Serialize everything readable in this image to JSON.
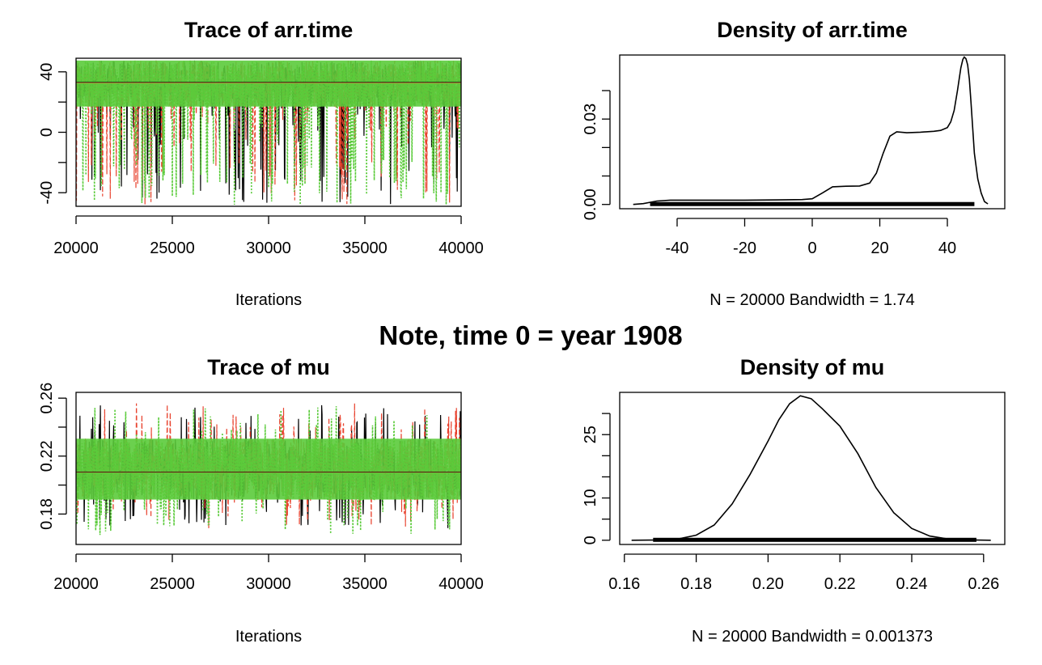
{
  "figure_title": "Note, time 0 = year 1908",
  "colors": {
    "chain1": "#000000",
    "chain2": "#e8432f",
    "chain3": "#5bcb3b",
    "axis": "#000000"
  },
  "chart_data": [
    {
      "id": "trace_arr",
      "type": "line",
      "title": "Trace of arr.time",
      "xlabel": "Iterations",
      "ylabel": "",
      "xlim": [
        20000,
        40000
      ],
      "ylim": [
        -49,
        49
      ],
      "xticks": [
        20000,
        25000,
        30000,
        35000,
        40000
      ],
      "yticks": [
        -40,
        0,
        40
      ],
      "y_minor_ticks": [
        -20,
        20
      ],
      "series": [
        {
          "color": "#000000",
          "mean": 33,
          "band_low": 17,
          "band_high": 47.5,
          "spikes_low": -48
        },
        {
          "color": "#e8432f",
          "mean": 33,
          "band_low": 17,
          "band_high": 47.5,
          "spikes_low": -48
        },
        {
          "color": "#5bcb3b",
          "mean": 33,
          "band_low": 17,
          "band_high": 47.5,
          "spikes_low": -48
        }
      ]
    },
    {
      "id": "density_arr",
      "type": "line",
      "title": "Density of arr.time",
      "xlabel": "N = 20000   Bandwidth = 1.74",
      "ylabel": "",
      "xlim": [
        -57,
        57
      ],
      "ylim": [
        -0.0015,
        0.0525
      ],
      "xticks": [
        -40,
        -20,
        0,
        20,
        40
      ],
      "yticks": [
        0.0,
        0.03
      ],
      "ytick_labels": [
        "0.00",
        "0.03"
      ],
      "y_minor_ticks": [
        0.01,
        0.02,
        0.04
      ],
      "x": [
        -53,
        -50,
        -46,
        -42,
        -38,
        -30,
        -20,
        -10,
        -3,
        0,
        3,
        6,
        10,
        14,
        17,
        19,
        21,
        23,
        25,
        28,
        32,
        36,
        38,
        40,
        41,
        42,
        43,
        44,
        44.6,
        45,
        45.5,
        46,
        46.5,
        47,
        47.5,
        48,
        49,
        50,
        51,
        52
      ],
      "y": [
        0,
        0.0003,
        0.0012,
        0.0015,
        0.0015,
        0.0015,
        0.0015,
        0.0016,
        0.0017,
        0.002,
        0.004,
        0.0062,
        0.0064,
        0.0065,
        0.0075,
        0.011,
        0.018,
        0.024,
        0.0255,
        0.0252,
        0.0254,
        0.0257,
        0.026,
        0.027,
        0.029,
        0.033,
        0.04,
        0.048,
        0.051,
        0.0518,
        0.0512,
        0.049,
        0.044,
        0.036,
        0.027,
        0.018,
        0.009,
        0.004,
        0.001,
        0.0002
      ],
      "rug_range": [
        -48,
        48
      ]
    },
    {
      "id": "trace_mu",
      "type": "line",
      "title": "Trace of mu",
      "xlabel": "Iterations",
      "ylabel": "",
      "xlim": [
        20000,
        40000
      ],
      "ylim": [
        0.159,
        0.264
      ],
      "xticks": [
        20000,
        25000,
        30000,
        35000,
        40000
      ],
      "yticks": [
        0.18,
        0.22,
        0.26
      ],
      "y_minor_ticks": [
        0.2,
        0.24
      ],
      "series": [
        {
          "color": "#000000",
          "mean": 0.209,
          "band_low": 0.19,
          "band_high": 0.232,
          "spike_low": 0.17,
          "spike_high": 0.257
        },
        {
          "color": "#e8432f",
          "mean": 0.209,
          "band_low": 0.19,
          "band_high": 0.232,
          "spike_low": 0.17,
          "spike_high": 0.257
        },
        {
          "color": "#5bcb3b",
          "mean": 0.209,
          "band_low": 0.19,
          "band_high": 0.232,
          "spike_low": 0.165,
          "spike_high": 0.255
        }
      ]
    },
    {
      "id": "density_mu",
      "type": "line",
      "title": "Density of mu",
      "xlabel": "N = 20000   Bandwidth = 0.001373",
      "ylabel": "",
      "xlim": [
        0.1587,
        0.2659
      ],
      "ylim": [
        -1,
        35
      ],
      "xticks": [
        0.16,
        0.18,
        0.2,
        0.22,
        0.24,
        0.26
      ],
      "xtick_labels": [
        "0.16",
        "0.18",
        "0.20",
        "0.22",
        "0.24",
        "0.26"
      ],
      "yticks": [
        0,
        10,
        25
      ],
      "y_minor_ticks": [
        5,
        15,
        20,
        30
      ],
      "x": [
        0.162,
        0.17,
        0.175,
        0.18,
        0.185,
        0.19,
        0.195,
        0.2,
        0.203,
        0.206,
        0.209,
        0.212,
        0.215,
        0.22,
        0.225,
        0.23,
        0.235,
        0.24,
        0.245,
        0.25,
        0.255,
        0.262
      ],
      "y": [
        0,
        0.08,
        0.3,
        1.2,
        3.6,
        8.6,
        15.6,
        23.5,
        28.5,
        32.3,
        34.2,
        33.5,
        31.2,
        27,
        20.5,
        12.5,
        6.5,
        2.8,
        1.0,
        0.3,
        0.1,
        0.0
      ],
      "rug_range": [
        0.168,
        0.258
      ]
    }
  ]
}
